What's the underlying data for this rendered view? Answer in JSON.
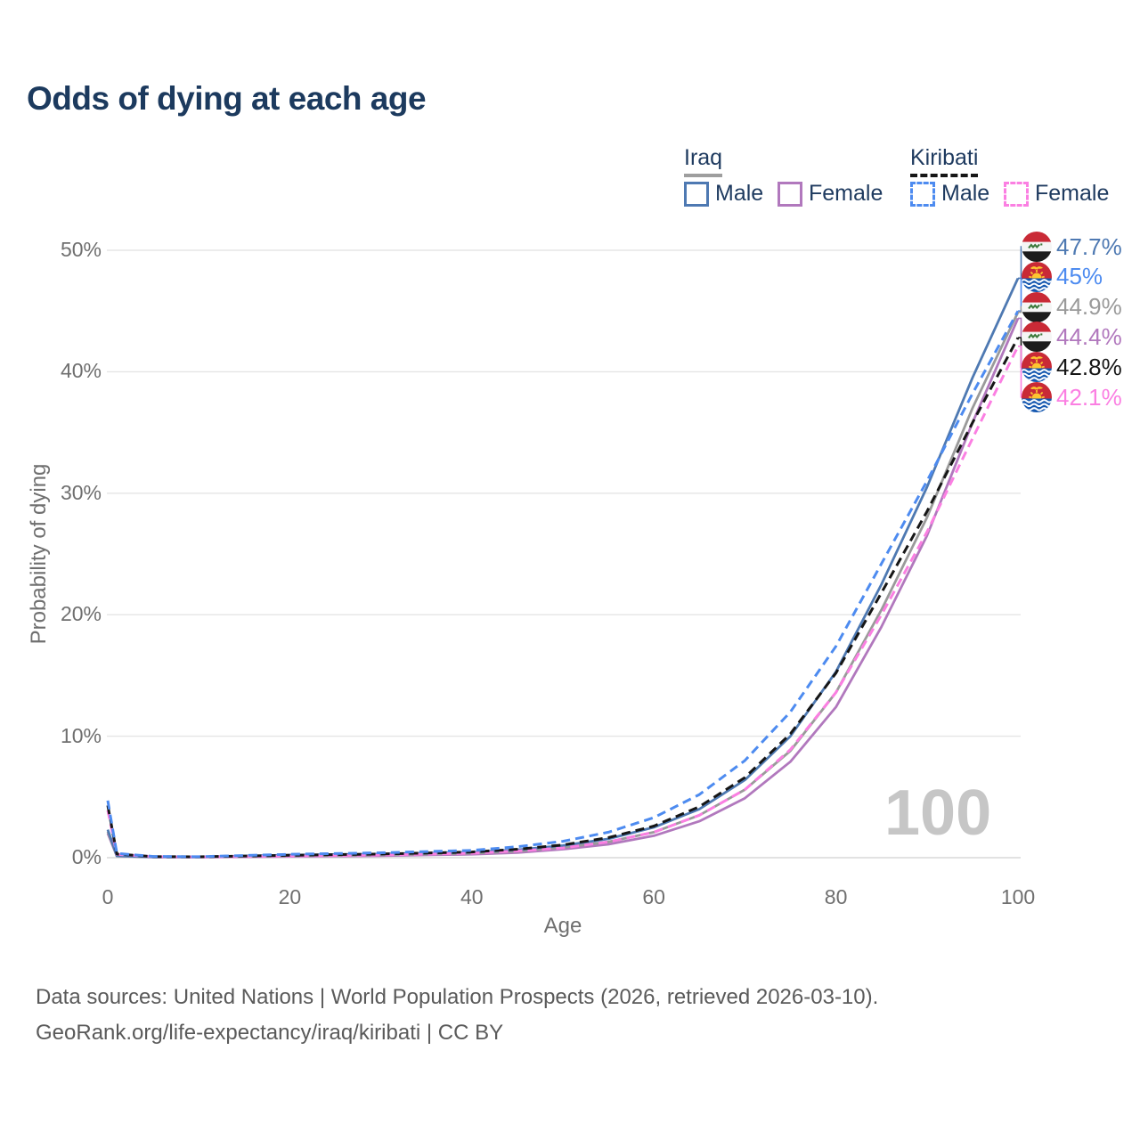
{
  "title": "Odds of dying at each age",
  "watermark": "100",
  "footer": {
    "line1": "Data sources: United Nations | World Population Prospects (2026, retrieved 2026-03-10).",
    "line2": "GeoRank.org/life-expectancy/iraq/kiribati | CC BY"
  },
  "legend": {
    "groups": [
      {
        "title": "Iraq",
        "line_style": "solid",
        "underline_color": "#9e9e9e",
        "items": [
          {
            "label": "Male",
            "color": "#4e79b2"
          },
          {
            "label": "Female",
            "color": "#b178bd"
          }
        ]
      },
      {
        "title": "Kiribati",
        "line_style": "dashed",
        "underline_color": "#161616",
        "items": [
          {
            "label": "Male",
            "color": "#4d8bf0"
          },
          {
            "label": "Female",
            "color": "#fb7fe2"
          }
        ]
      }
    ]
  },
  "chart_data": {
    "type": "line",
    "title": "Odds of dying at each age",
    "xlabel": "Age",
    "ylabel": "Probability of dying",
    "xlim": [
      0,
      100
    ],
    "ylim": [
      0,
      50
    ],
    "x_ticks": [
      0,
      20,
      40,
      60,
      80,
      100
    ],
    "y_ticks": [
      0,
      10,
      20,
      30,
      40,
      50
    ],
    "y_tick_suffix": "%",
    "grid": true,
    "legend_position": "top-right",
    "x": [
      0,
      1,
      5,
      10,
      20,
      30,
      40,
      45,
      50,
      55,
      60,
      65,
      70,
      75,
      80,
      85,
      90,
      95,
      100
    ],
    "series": [
      {
        "name": "Iraq Female",
        "country": "Iraq",
        "sex": "Female",
        "color": "#b178bd",
        "dash": "solid",
        "flag": "iraq",
        "end_label": "44.4%",
        "values": [
          2.0,
          0.13,
          0.05,
          0.04,
          0.1,
          0.16,
          0.28,
          0.42,
          0.7,
          1.1,
          1.8,
          3.0,
          4.9,
          7.9,
          12.4,
          19.0,
          26.5,
          35.8,
          44.4
        ]
      },
      {
        "name": "Iraq Both sexes",
        "country": "Iraq",
        "sex": "Both",
        "color": "#9a9a9a",
        "dash": "solid",
        "flag": "iraq",
        "end_label": "44.9%",
        "values": [
          2.15,
          0.14,
          0.055,
          0.05,
          0.16,
          0.22,
          0.36,
          0.52,
          0.85,
          1.3,
          2.1,
          3.5,
          5.6,
          8.8,
          13.6,
          20.4,
          28.0,
          37.0,
          44.9
        ]
      },
      {
        "name": "Iraq Male",
        "country": "Iraq",
        "sex": "Male",
        "color": "#4e79b2",
        "dash": "solid",
        "flag": "iraq",
        "end_label": "47.7%",
        "values": [
          2.3,
          0.15,
          0.06,
          0.06,
          0.22,
          0.3,
          0.45,
          0.65,
          1.0,
          1.55,
          2.5,
          4.0,
          6.4,
          10.0,
          15.3,
          22.5,
          30.5,
          39.5,
          47.7
        ]
      },
      {
        "name": "Kiribati Female",
        "country": "Kiribati",
        "sex": "Female",
        "color": "#fb7fe2",
        "dash": "dashed",
        "flag": "kiribati",
        "end_label": "42.1%",
        "values": [
          3.9,
          0.27,
          0.08,
          0.06,
          0.14,
          0.22,
          0.37,
          0.55,
          0.8,
          1.3,
          2.1,
          3.5,
          5.6,
          8.9,
          13.6,
          20.0,
          26.8,
          34.5,
          42.1
        ]
      },
      {
        "name": "Kiribati Both sexes",
        "country": "Kiribati",
        "sex": "Both",
        "color": "#161616",
        "dash": "dashed",
        "flag": "kiribati",
        "end_label": "42.8%",
        "values": [
          4.3,
          0.3,
          0.09,
          0.07,
          0.2,
          0.3,
          0.47,
          0.7,
          1.05,
          1.65,
          2.6,
          4.2,
          6.6,
          10.2,
          15.2,
          21.8,
          28.5,
          35.8,
          42.8
        ]
      },
      {
        "name": "Kiribati Male",
        "country": "Kiribati",
        "sex": "Male",
        "color": "#4d8bf0",
        "dash": "dashed",
        "flag": "kiribati",
        "end_label": "45%",
        "values": [
          4.7,
          0.35,
          0.1,
          0.08,
          0.28,
          0.4,
          0.6,
          0.9,
          1.35,
          2.1,
          3.3,
          5.2,
          8.0,
          12.0,
          17.4,
          24.2,
          31.0,
          38.2,
          45.0
        ]
      }
    ]
  }
}
